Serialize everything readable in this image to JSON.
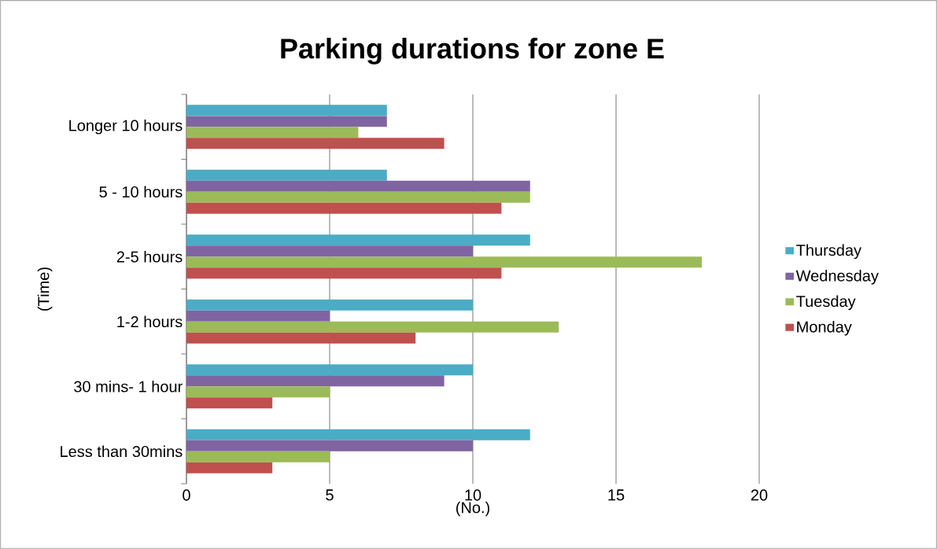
{
  "chart_data": {
    "type": "bar",
    "orientation": "horizontal",
    "title": "Parking durations for zone E",
    "xlabel": "(No.)",
    "ylabel": "(Time)",
    "categories": [
      "Longer 10 hours",
      "5 - 10 hours",
      "2-5 hours",
      "1-2 hours",
      "30 mins- 1 hour",
      "Less than 30mins"
    ],
    "series": [
      {
        "name": "Thursday",
        "color": "#4bacc6",
        "values": [
          7,
          7,
          12,
          10,
          10,
          12
        ]
      },
      {
        "name": "Wednesday",
        "color": "#8064a2",
        "values": [
          7,
          12,
          10,
          5,
          9,
          10
        ]
      },
      {
        "name": "Tuesday",
        "color": "#9bbb59",
        "values": [
          6,
          12,
          18,
          13,
          5,
          5
        ]
      },
      {
        "name": "Monday",
        "color": "#c0504d",
        "values": [
          9,
          11,
          11,
          8,
          3,
          3
        ]
      }
    ],
    "xlim": [
      0,
      20
    ],
    "xticks": [
      0,
      5,
      10,
      15,
      20
    ],
    "grid": "x",
    "legend": "right"
  }
}
